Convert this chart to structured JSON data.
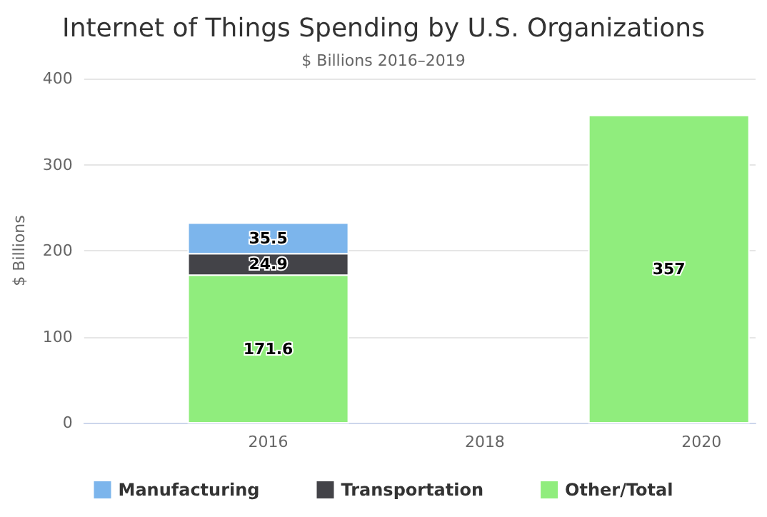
{
  "chart_data": {
    "type": "bar",
    "title": "Internet of Things Spending by U.S. Organizations",
    "subtitle": "$ Billions 2016–2019",
    "ylabel": "$ Billions",
    "x": [
      2016,
      2019.7
    ],
    "stacked": true,
    "series": [
      {
        "name": "Other/Total",
        "color": "#90ed7d",
        "values": [
          171.6,
          357
        ]
      },
      {
        "name": "Transportation",
        "color": "#434348",
        "values": [
          24.9,
          null
        ]
      },
      {
        "name": "Manufacturing",
        "color": "#7cb5ec",
        "values": [
          35.5,
          null
        ]
      }
    ],
    "xlim": [
      2014.3,
      2020.5
    ],
    "xticks": [
      2016,
      2018,
      2020
    ],
    "ylim": [
      0,
      400
    ],
    "yticks": [
      0,
      100,
      200,
      300,
      400
    ],
    "grid": "y",
    "legend": "bottom",
    "data_labels": true
  }
}
